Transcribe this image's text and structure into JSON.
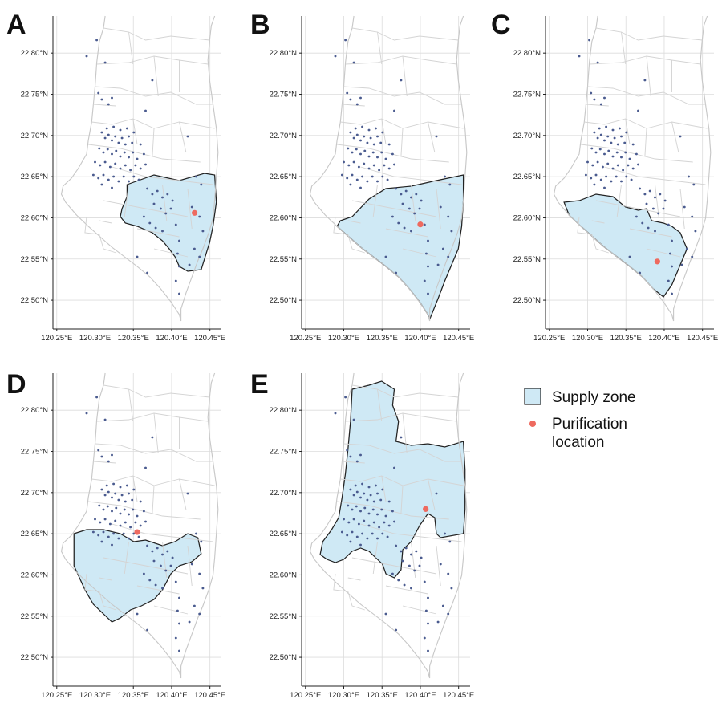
{
  "panels": [
    {
      "letter": "A",
      "purification": {
        "lon": 120.43,
        "lat": 22.606
      }
    },
    {
      "letter": "B",
      "purification": {
        "lon": 120.4,
        "lat": 22.592
      }
    },
    {
      "letter": "C",
      "purification": {
        "lon": 120.391,
        "lat": 22.547
      }
    },
    {
      "letter": "D",
      "purification": {
        "lon": 120.355,
        "lat": 22.652
      }
    },
    {
      "letter": "E",
      "purification": {
        "lon": 120.407,
        "lat": 22.68
      }
    }
  ],
  "axes": {
    "x_ticks": [
      "120.25°E",
      "120.30°E",
      "120.35°E",
      "120.40°E",
      "120.45°E"
    ],
    "x_values": [
      120.25,
      120.3,
      120.35,
      120.4,
      120.45
    ],
    "y_ticks": [
      "22.50°N",
      "22.55°N",
      "22.60°N",
      "22.65°N",
      "22.70°N",
      "22.75°N",
      "22.80°N"
    ],
    "y_values": [
      22.5,
      22.55,
      22.6,
      22.65,
      22.7,
      22.75,
      22.8
    ],
    "lon_range": [
      120.245,
      120.465
    ],
    "lat_range": [
      22.465,
      22.845
    ]
  },
  "legend": {
    "zone_label": "Supply zone",
    "purification_label_line1": "Purification",
    "purification_label_line2": "location"
  },
  "colors": {
    "zone_fill": "#cfe9f5",
    "purification_point": "#ee6a5f",
    "case_point": "#4a5b8f"
  }
}
